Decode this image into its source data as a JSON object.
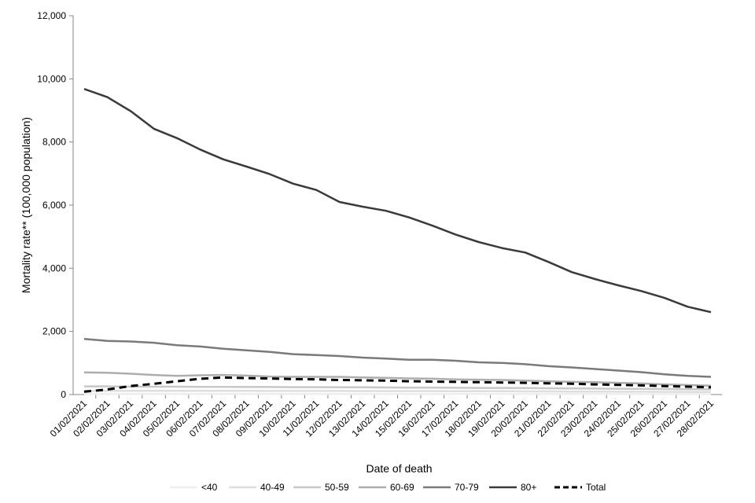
{
  "chart_data": {
    "type": "line",
    "title": "",
    "xlabel": "Date of death",
    "ylabel": "Mortality rate** (100,000 population)",
    "ylim": [
      0,
      12000
    ],
    "yticks": [
      0,
      2000,
      4000,
      6000,
      8000,
      10000,
      12000
    ],
    "ytick_labels": [
      "0",
      "2,000",
      "4,000",
      "6,000",
      "8,000",
      "10,000",
      "12,000"
    ],
    "grid": false,
    "legend_position": "bottom",
    "categories": [
      "01/02/2021",
      "02/02/2021",
      "03/02/2021",
      "04/02/2021",
      "05/02/2021",
      "06/02/2021",
      "07/02/2021",
      "08/02/2021",
      "09/02/2021",
      "10/02/2021",
      "11/02/2021",
      "12/02/2021",
      "13/02/2021",
      "14/02/2021",
      "15/02/2021",
      "16/02/2021",
      "17/02/2021",
      "18/02/2021",
      "19/02/2021",
      "20/02/2021",
      "21/02/2021",
      "22/02/2021",
      "23/02/2021",
      "24/02/2021",
      "25/02/2021",
      "26/02/2021",
      "27/02/2021",
      "28/02/2021"
    ],
    "series": [
      {
        "name": "<40",
        "color": "#eeeeee",
        "dashed": false,
        "values": [
          20,
          20,
          20,
          20,
          20,
          20,
          20,
          20,
          20,
          20,
          20,
          20,
          20,
          20,
          20,
          20,
          20,
          20,
          20,
          20,
          20,
          20,
          20,
          15,
          15,
          15,
          15,
          15
        ]
      },
      {
        "name": "40-49",
        "color": "#dedede",
        "dashed": false,
        "values": [
          120,
          120,
          120,
          120,
          120,
          120,
          120,
          120,
          115,
          115,
          115,
          115,
          110,
          110,
          110,
          110,
          105,
          105,
          105,
          100,
          100,
          95,
          95,
          90,
          90,
          85,
          85,
          80
        ]
      },
      {
        "name": "50-59",
        "color": "#c8c8c8",
        "dashed": false,
        "values": [
          260,
          260,
          250,
          250,
          250,
          245,
          245,
          240,
          240,
          235,
          235,
          230,
          230,
          225,
          220,
          220,
          215,
          210,
          210,
          205,
          200,
          195,
          190,
          185,
          180,
          175,
          170,
          165
        ]
      },
      {
        "name": "60-69",
        "color": "#adadad",
        "dashed": false,
        "values": [
          700,
          690,
          660,
          620,
          590,
          610,
          620,
          600,
          570,
          560,
          560,
          560,
          540,
          530,
          510,
          500,
          480,
          470,
          460,
          440,
          420,
          400,
          390,
          370,
          350,
          320,
          300,
          280
        ]
      },
      {
        "name": "70-79",
        "color": "#7a7a7a",
        "dashed": false,
        "values": [
          1760,
          1700,
          1680,
          1640,
          1560,
          1520,
          1450,
          1400,
          1350,
          1280,
          1250,
          1220,
          1170,
          1140,
          1100,
          1100,
          1070,
          1020,
          1000,
          960,
          900,
          860,
          810,
          760,
          710,
          640,
          590,
          560
        ]
      },
      {
        "name": "80+",
        "color": "#3a3a3a",
        "dashed": false,
        "values": [
          9680,
          9420,
          8980,
          8420,
          8120,
          7760,
          7450,
          7220,
          6980,
          6680,
          6480,
          6100,
          5950,
          5820,
          5610,
          5350,
          5070,
          4830,
          4640,
          4500,
          4200,
          3880,
          3660,
          3460,
          3280,
          3060,
          2780,
          2610
        ]
      },
      {
        "name": "Total",
        "color": "#000000",
        "dashed": true,
        "values": [
          90,
          160,
          270,
          340,
          420,
          500,
          540,
          520,
          510,
          490,
          480,
          460,
          450,
          440,
          420,
          410,
          400,
          390,
          380,
          370,
          355,
          340,
          320,
          305,
          290,
          270,
          250,
          230
        ]
      }
    ]
  }
}
